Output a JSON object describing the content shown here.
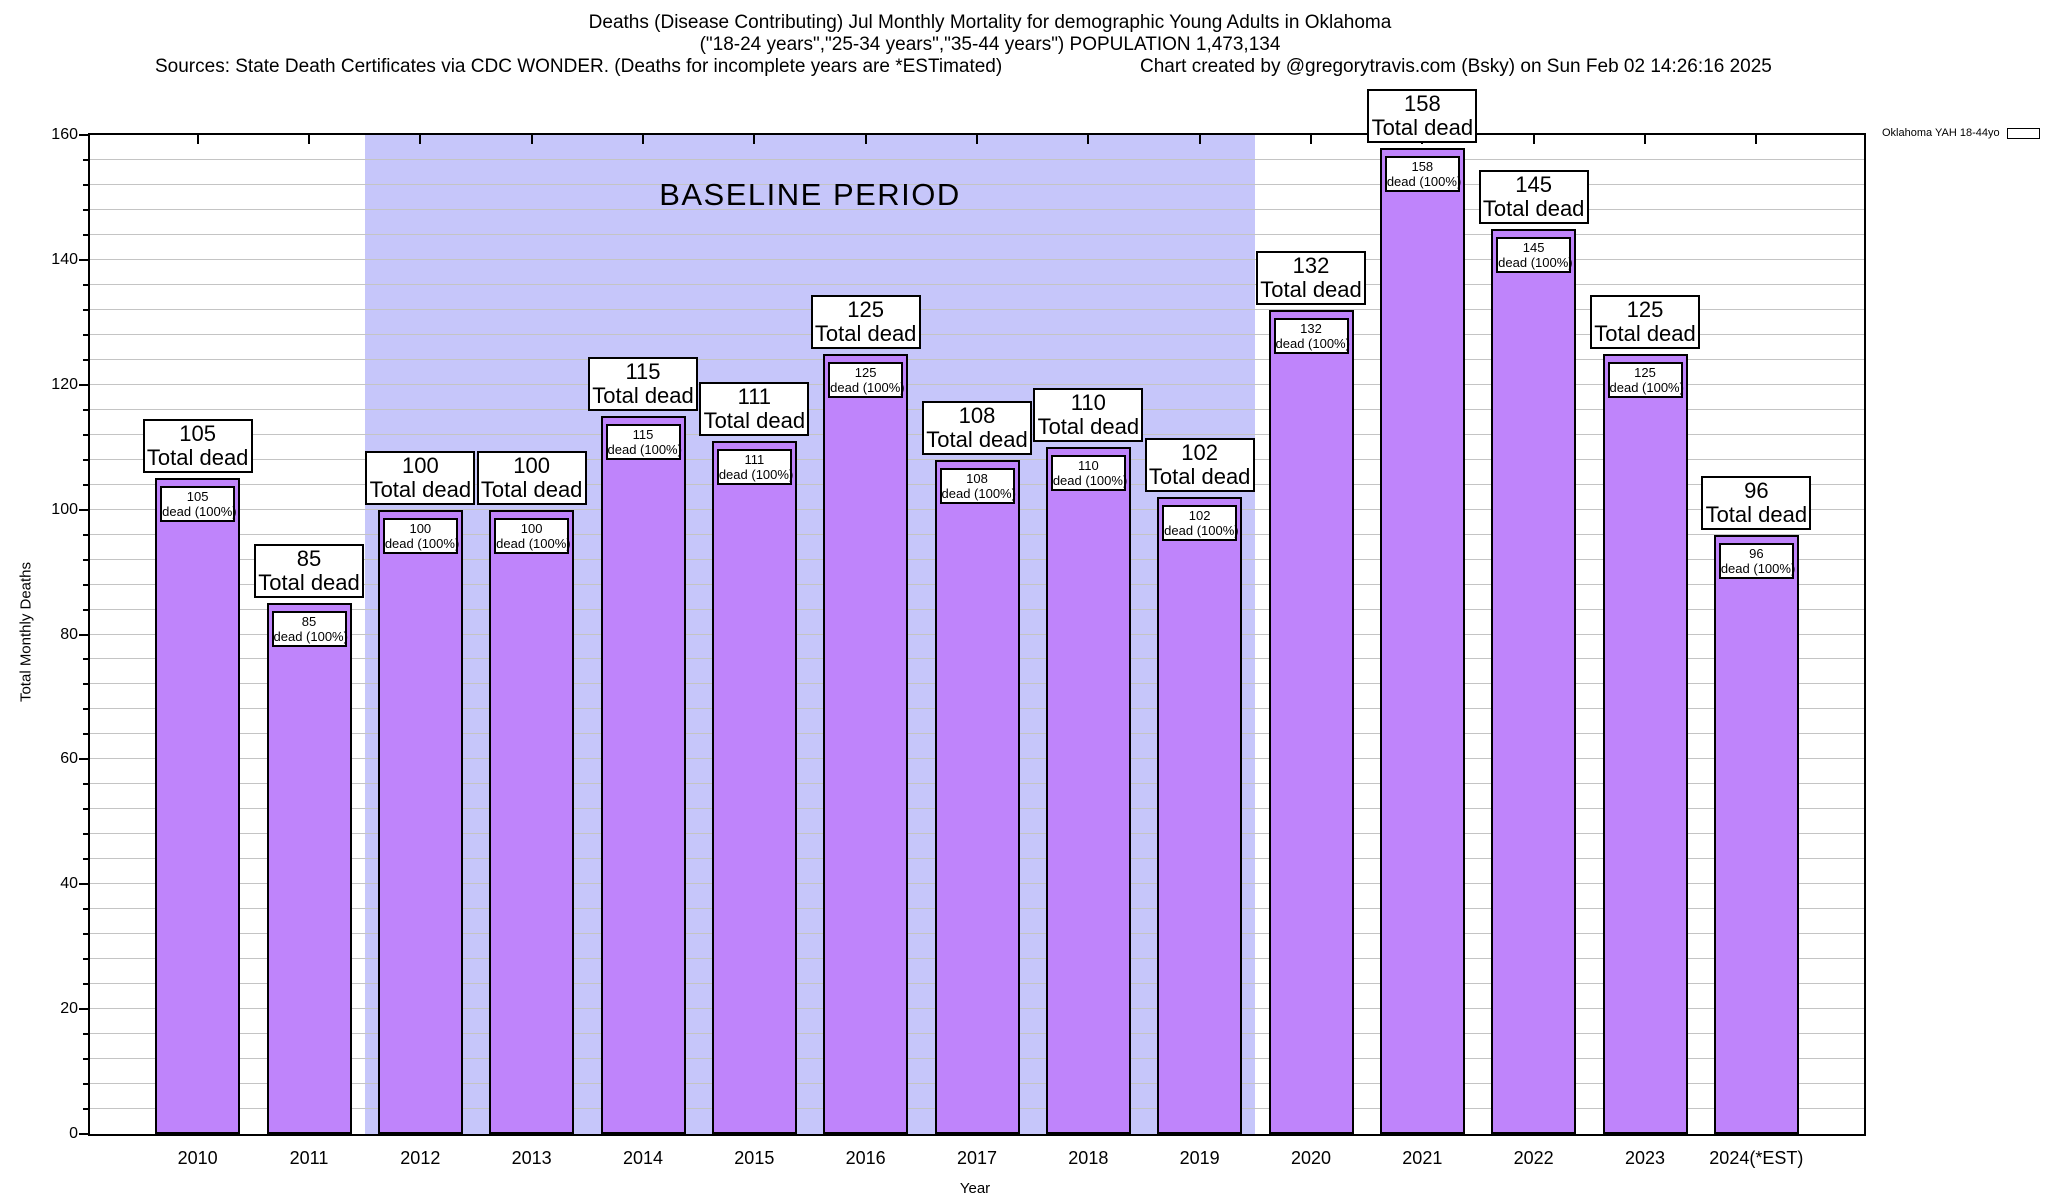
{
  "chart_data": {
    "type": "bar",
    "title": "Deaths (Disease Contributing) Jul Monthly Mortality for demographic Young Adults in Oklahoma",
    "subtitle": "(\"18-24 years\",\"25-34 years\",\"35-44 years\") POPULATION 1,473,134",
    "source_note": "Sources: State Death Certificates via CDC WONDER. (Deaths for incomplete years are *ESTimated)",
    "credit_note": "Chart created by @gregorytravis.com (Bsky) on Sun Feb 02 14:26:16 2025",
    "xlabel": "Year",
    "ylabel": "Total Monthly Deaths",
    "ylim": [
      0,
      160
    ],
    "ytick_major": 20,
    "ytick_minor": 4,
    "grid": true,
    "legend": {
      "label": "Oklahoma YAH 18-44yo",
      "position": "top-right-outside"
    },
    "series_name": "Oklahoma YAH 18-44yo",
    "categories": [
      "2010",
      "2011",
      "2012",
      "2013",
      "2014",
      "2015",
      "2016",
      "2017",
      "2018",
      "2019",
      "2020",
      "2021",
      "2022",
      "2023",
      "2024(*EST)"
    ],
    "values": [
      105,
      85,
      100,
      100,
      115,
      111,
      125,
      108,
      110,
      102,
      132,
      158,
      145,
      125,
      96
    ],
    "bar_top_label_suffix": "Total dead",
    "bar_inner_label_suffix": "dead (100%)",
    "baseline_period": {
      "label": "BASELINE PERIOD",
      "from": "2012",
      "to": "2019",
      "from_index": 2,
      "to_index": 9
    },
    "colors": {
      "bar_fill": "#bf84fb",
      "bar_border": "#000000",
      "baseline_bg": "#c6c6fa",
      "gridline": "#c4c4c4",
      "label_box_bg": "#ffffff",
      "label_box_border": "#000000"
    }
  }
}
